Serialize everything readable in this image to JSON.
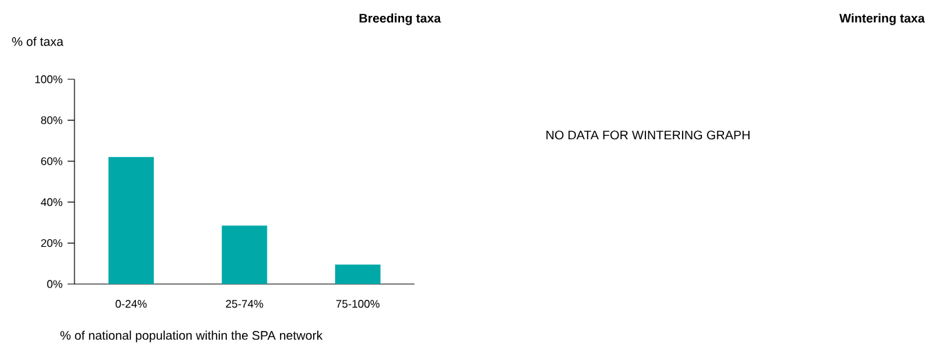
{
  "chart_data": [
    {
      "type": "bar",
      "title": "Breeding taxa",
      "ylabel": "% of taxa",
      "xlabel": "% of national population within the SPA network",
      "categories": [
        "0-24%",
        "25-74%",
        "75-100%"
      ],
      "values": [
        62,
        28.5,
        9.5
      ],
      "color": "#00a8a8",
      "ylim": [
        0,
        100
      ],
      "yticks": [
        {
          "value": 0,
          "label": "0%"
        },
        {
          "value": 20,
          "label": "20%"
        },
        {
          "value": 40,
          "label": "40%"
        },
        {
          "value": 60,
          "label": "60%"
        },
        {
          "value": 80,
          "label": "80%"
        },
        {
          "value": 100,
          "label": "100%"
        }
      ],
      "grid": false
    },
    {
      "type": "other",
      "title": "Wintering taxa",
      "annotations": [
        "NO DATA FOR WINTERING GRAPH"
      ]
    }
  ]
}
